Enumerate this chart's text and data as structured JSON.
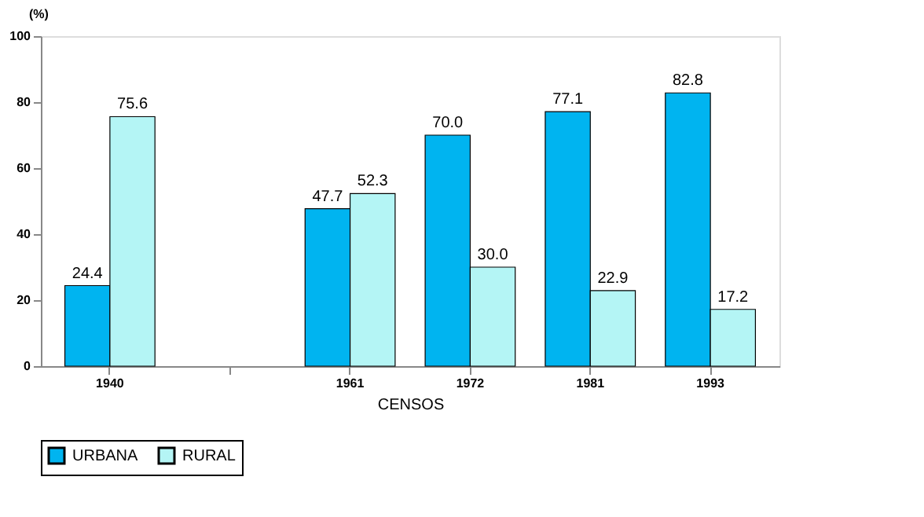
{
  "chart_data": {
    "type": "bar",
    "xlabel": "CENSOS",
    "ylabel": "(%)",
    "categories": [
      "1940",
      null,
      "1961",
      "1972",
      "1981",
      "1993"
    ],
    "series": [
      {
        "name": "URBANA",
        "color": "#00b4f0",
        "values": [
          24.4,
          null,
          47.7,
          70.0,
          77.1,
          82.8
        ],
        "value_labels": [
          "24.4",
          null,
          "47.7",
          "70.0",
          "77.1",
          "82.8"
        ]
      },
      {
        "name": "RURAL",
        "color": "#b4f5f5",
        "values": [
          75.6,
          null,
          52.3,
          30.0,
          22.9,
          17.2
        ],
        "value_labels": [
          "75.6",
          null,
          "52.3",
          "30.0",
          "22.9",
          "17.2"
        ]
      }
    ],
    "ylim": [
      0,
      100
    ],
    "yticks": [
      0,
      20,
      40,
      60,
      80,
      100
    ],
    "grid": false,
    "legend": "bottom"
  }
}
